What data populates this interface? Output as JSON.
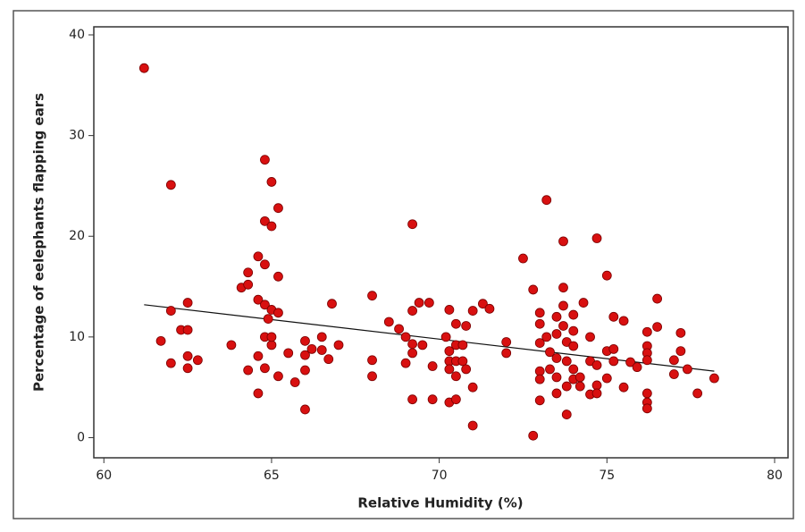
{
  "chart_data": {
    "type": "scatter",
    "x_label": "Relative Humidity (%)",
    "y_label": "Percentage of eelephants flapping ears",
    "xlim": [
      59.7,
      80.4
    ],
    "ylim": [
      -2,
      40.8
    ],
    "xticks": [
      60,
      65,
      70,
      75,
      80
    ],
    "yticks": [
      0,
      10,
      20,
      30,
      40
    ],
    "color": "#d81010",
    "x": [
      61.2,
      62.0,
      61.7,
      62.0,
      62.0,
      62.3,
      62.5,
      62.5,
      62.5,
      62.5,
      62.8,
      63.8,
      64.1,
      64.3,
      64.3,
      64.3,
      64.6,
      64.8,
      64.8,
      64.6,
      64.6,
      64.6,
      64.8,
      65.0,
      65.0,
      65.2,
      65.2,
      64.8,
      64.9,
      65.0,
      65.2,
      64.8,
      65.0,
      65.0,
      64.8,
      65.2,
      65.5,
      65.7,
      66.0,
      66.0,
      66.0,
      66.0,
      66.2,
      66.5,
      66.5,
      66.7,
      66.8,
      67.0,
      68.0,
      68.0,
      68.0,
      68.5,
      68.8,
      69.0,
      69.0,
      69.2,
      69.2,
      69.2,
      69.2,
      69.2,
      69.4,
      69.5,
      69.7,
      69.8,
      69.8,
      70.3,
      70.2,
      70.3,
      70.3,
      70.3,
      70.3,
      70.5,
      70.5,
      70.5,
      70.5,
      70.5,
      70.8,
      70.7,
      70.7,
      70.8,
      71.0,
      71.0,
      71.0,
      71.3,
      71.5,
      72.0,
      72.0,
      72.5,
      72.8,
      72.8,
      73.0,
      73.0,
      73.0,
      73.0,
      73.0,
      73.0,
      73.2,
      73.2,
      73.3,
      73.3,
      73.5,
      73.5,
      73.5,
      73.5,
      73.5,
      73.7,
      73.7,
      73.7,
      73.7,
      73.8,
      73.8,
      73.8,
      73.8,
      74.0,
      74.0,
      74.0,
      74.0,
      74.0,
      74.3,
      74.2,
      74.2,
      74.5,
      74.5,
      74.5,
      74.7,
      74.7,
      74.7,
      74.7,
      75.0,
      75.0,
      75.0,
      75.2,
      75.2,
      75.2,
      75.5,
      75.5,
      75.7,
      75.9,
      76.2,
      76.2,
      76.2,
      76.2,
      76.2,
      76.2,
      76.2,
      76.5,
      76.5,
      77.0,
      77.0,
      77.2,
      77.2,
      77.4,
      77.7,
      78.2
    ],
    "y": [
      36.7,
      25.1,
      9.6,
      12.6,
      7.4,
      10.7,
      10.7,
      13.4,
      8.1,
      6.9,
      7.7,
      9.2,
      14.9,
      16.4,
      15.2,
      6.7,
      18.0,
      27.6,
      17.2,
      13.7,
      8.1,
      4.4,
      21.5,
      21.0,
      25.4,
      22.8,
      16.0,
      13.2,
      11.8,
      12.7,
      12.4,
      10.0,
      9.2,
      10.0,
      6.9,
      6.1,
      8.4,
      5.5,
      2.8,
      9.6,
      8.2,
      6.7,
      8.8,
      10.0,
      8.7,
      7.8,
      13.3,
      9.2,
      14.1,
      7.7,
      6.1,
      11.5,
      10.8,
      10.0,
      7.4,
      21.2,
      12.6,
      9.3,
      8.4,
      3.8,
      13.4,
      9.2,
      13.4,
      7.1,
      3.8,
      12.7,
      10.0,
      8.6,
      7.6,
      6.8,
      3.5,
      11.3,
      9.2,
      3.8,
      7.6,
      6.1,
      11.1,
      9.2,
      7.6,
      6.8,
      1.2,
      5.0,
      12.6,
      13.3,
      12.8,
      9.5,
      8.4,
      17.8,
      0.2,
      14.7,
      12.4,
      11.3,
      9.4,
      6.6,
      5.8,
      3.7,
      23.6,
      10.0,
      8.5,
      6.8,
      12.0,
      10.3,
      7.9,
      6.0,
      4.4,
      19.5,
      14.9,
      13.1,
      11.1,
      9.5,
      7.6,
      5.1,
      2.3,
      12.2,
      10.6,
      9.1,
      6.8,
      5.8,
      13.4,
      6.0,
      5.1,
      10.0,
      7.6,
      4.3,
      19.8,
      7.2,
      5.2,
      4.4,
      16.1,
      8.6,
      5.9,
      12.0,
      8.8,
      7.6,
      11.6,
      5.0,
      7.5,
      7.0,
      10.5,
      9.1,
      8.4,
      7.7,
      4.4,
      3.5,
      2.9,
      13.8,
      11.0,
      7.7,
      6.3,
      10.4,
      8.6,
      6.8,
      4.4,
      5.9
    ],
    "fit": {
      "x": [
        61.2,
        78.2
      ],
      "y": [
        13.2,
        6.6
      ],
      "color": "#111111"
    }
  }
}
